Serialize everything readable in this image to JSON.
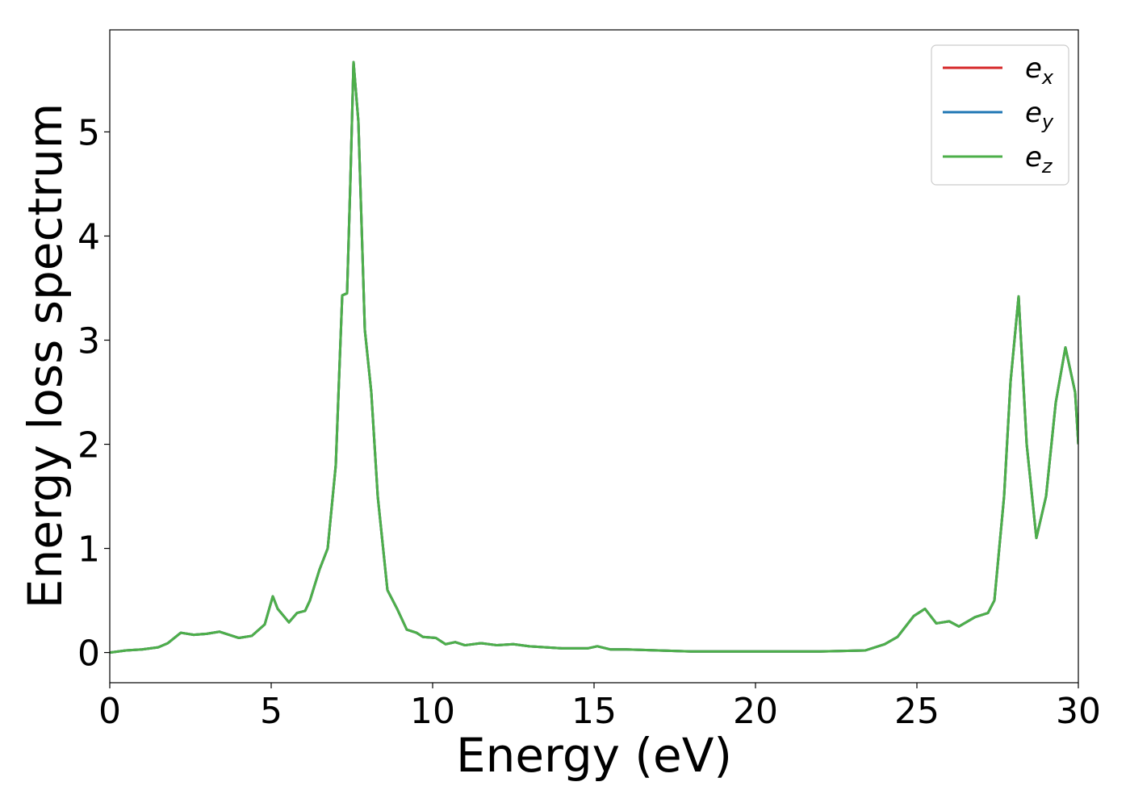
{
  "chart_data": {
    "type": "line",
    "x_label": "Energy (eV)",
    "y_label": "Energy loss spectrum",
    "x": [
      0,
      0.5,
      1,
      1.5,
      1.8,
      2.2,
      2.6,
      3,
      3.4,
      3.7,
      4,
      4.4,
      4.8,
      5.05,
      5.2,
      5.55,
      5.8,
      6.05,
      6.2,
      6.5,
      6.75,
      7,
      7.2,
      7.35,
      7.45,
      7.55,
      7.7,
      7.9,
      8.1,
      8.3,
      8.6,
      8.9,
      9.2,
      9.5,
      9.7,
      10.1,
      10.4,
      10.7,
      11,
      11.5,
      12,
      12.5,
      13,
      13.5,
      14,
      14.5,
      14.8,
      15.1,
      15.5,
      16,
      17,
      18,
      20,
      22,
      23.4,
      24,
      24.4,
      24.9,
      25.25,
      25.6,
      26,
      26.3,
      26.8,
      27.2,
      27.4,
      27.7,
      27.9,
      28.15,
      28.4,
      28.7,
      29,
      29.3,
      29.6,
      29.9,
      30
    ],
    "series": [
      {
        "name": "ex",
        "color": "#d62728",
        "values": [
          0,
          0.02,
          0.03,
          0.05,
          0.09,
          0.19,
          0.17,
          0.18,
          0.2,
          0.17,
          0.14,
          0.16,
          0.27,
          0.54,
          0.42,
          0.29,
          0.38,
          0.4,
          0.5,
          0.8,
          1.0,
          1.8,
          3.43,
          3.45,
          4.5,
          5.67,
          5.1,
          3.1,
          2.5,
          1.5,
          0.6,
          0.42,
          0.22,
          0.19,
          0.15,
          0.14,
          0.08,
          0.1,
          0.07,
          0.09,
          0.07,
          0.08,
          0.06,
          0.05,
          0.04,
          0.04,
          0.04,
          0.06,
          0.03,
          0.03,
          0.02,
          0.01,
          0.01,
          0.01,
          0.02,
          0.08,
          0.15,
          0.35,
          0.42,
          0.28,
          0.3,
          0.25,
          0.34,
          0.38,
          0.5,
          1.5,
          2.6,
          3.42,
          2.0,
          1.1,
          1.5,
          2.4,
          2.93,
          2.5,
          2.0
        ]
      },
      {
        "name": "ey",
        "color": "#1f77b4",
        "values": [
          0,
          0.02,
          0.03,
          0.05,
          0.09,
          0.19,
          0.17,
          0.18,
          0.2,
          0.17,
          0.14,
          0.16,
          0.27,
          0.54,
          0.42,
          0.29,
          0.38,
          0.4,
          0.5,
          0.8,
          1.0,
          1.8,
          3.43,
          3.45,
          4.5,
          5.67,
          5.1,
          3.1,
          2.5,
          1.5,
          0.6,
          0.42,
          0.22,
          0.19,
          0.15,
          0.14,
          0.08,
          0.1,
          0.07,
          0.09,
          0.07,
          0.08,
          0.06,
          0.05,
          0.04,
          0.04,
          0.04,
          0.06,
          0.03,
          0.03,
          0.02,
          0.01,
          0.01,
          0.01,
          0.02,
          0.08,
          0.15,
          0.35,
          0.42,
          0.28,
          0.3,
          0.25,
          0.34,
          0.38,
          0.5,
          1.5,
          2.6,
          3.42,
          2.0,
          1.1,
          1.5,
          2.4,
          2.93,
          2.5,
          2.0
        ]
      },
      {
        "name": "ez",
        "color": "#4daf4a",
        "values": [
          0,
          0.02,
          0.03,
          0.05,
          0.09,
          0.19,
          0.17,
          0.18,
          0.2,
          0.17,
          0.14,
          0.16,
          0.27,
          0.54,
          0.42,
          0.29,
          0.38,
          0.4,
          0.5,
          0.8,
          1.0,
          1.8,
          3.43,
          3.45,
          4.5,
          5.67,
          5.1,
          3.1,
          2.5,
          1.5,
          0.6,
          0.42,
          0.22,
          0.19,
          0.15,
          0.14,
          0.08,
          0.1,
          0.07,
          0.09,
          0.07,
          0.08,
          0.06,
          0.05,
          0.04,
          0.04,
          0.04,
          0.06,
          0.03,
          0.03,
          0.02,
          0.01,
          0.01,
          0.01,
          0.02,
          0.08,
          0.15,
          0.35,
          0.42,
          0.28,
          0.3,
          0.25,
          0.34,
          0.38,
          0.5,
          1.5,
          2.6,
          3.42,
          2.0,
          1.1,
          1.5,
          2.4,
          2.93,
          2.5,
          2.0
        ]
      }
    ],
    "xlim": [
      0,
      30
    ],
    "xticks": [
      0,
      5,
      10,
      15,
      20,
      25,
      30
    ],
    "ylim": [
      -0.29,
      5.98
    ],
    "yticks": [
      0,
      1,
      2,
      3,
      4,
      5
    ],
    "grid": false,
    "legend": "upper right"
  }
}
